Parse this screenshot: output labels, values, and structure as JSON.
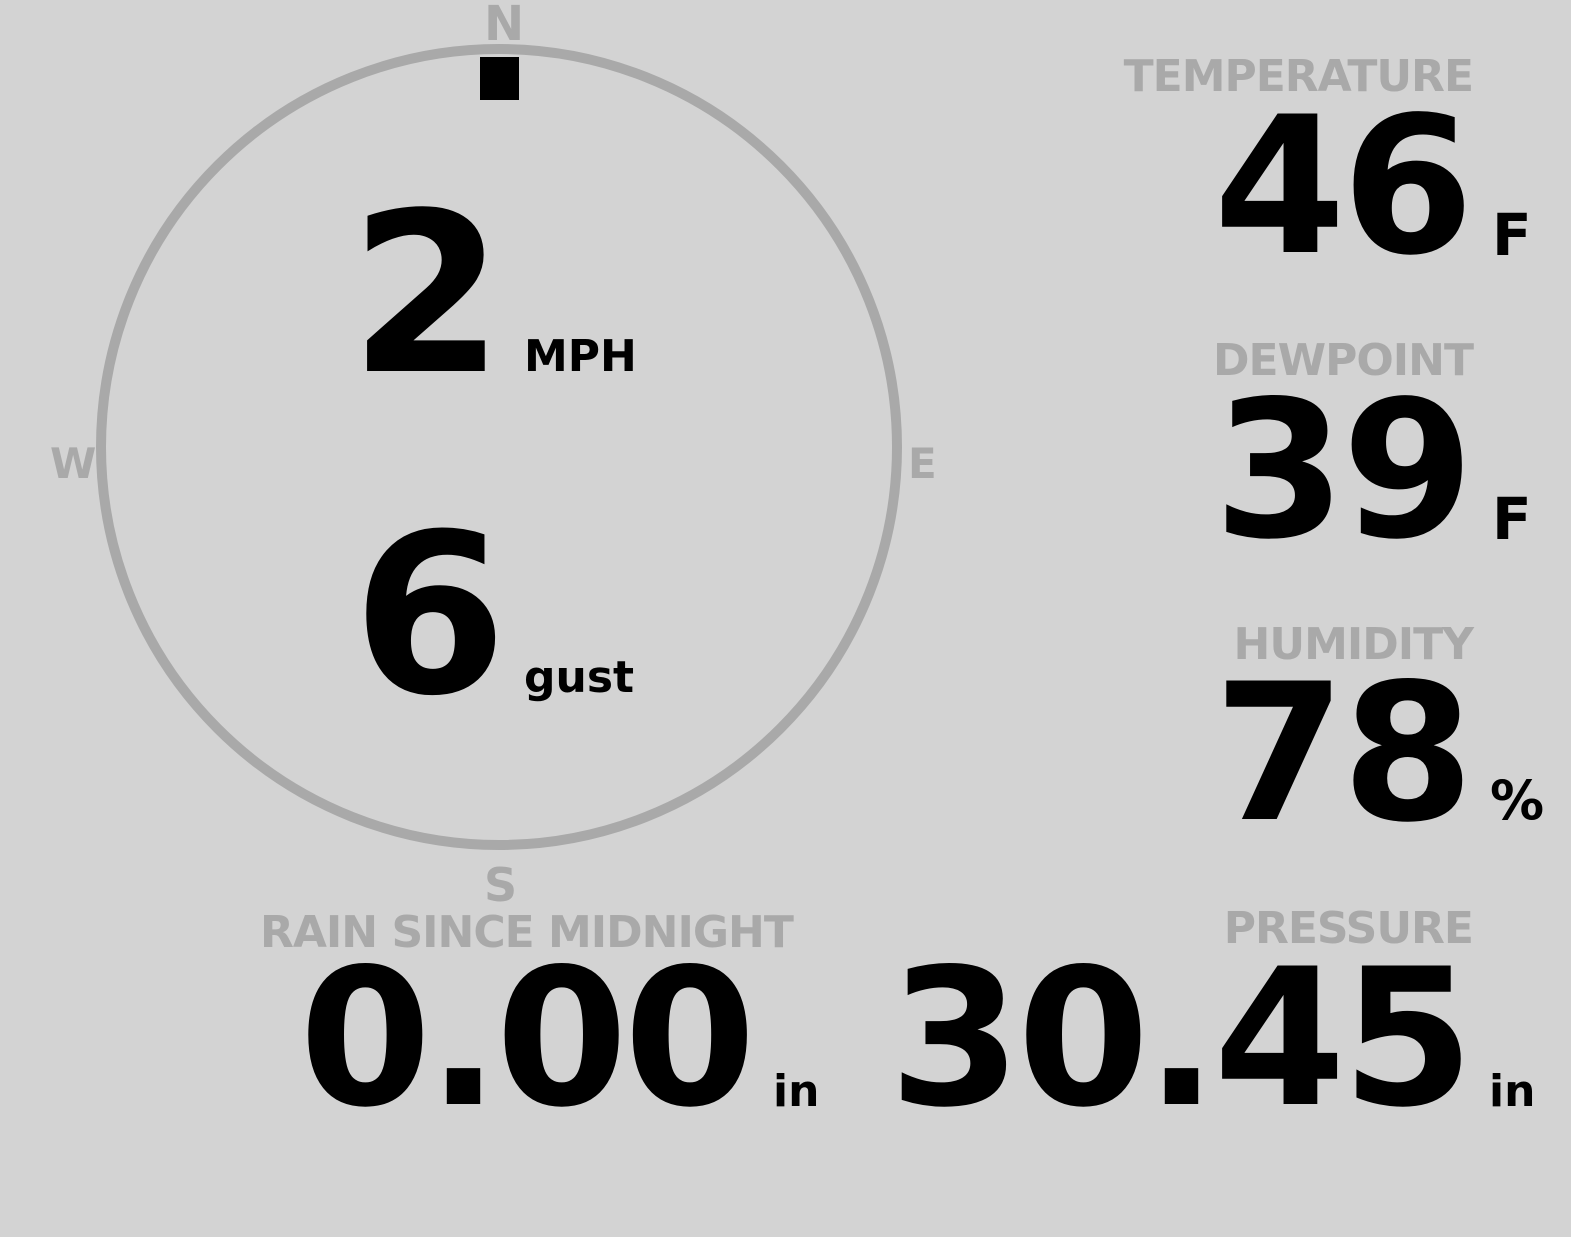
{
  "colors": {
    "background": "#d3d3d3",
    "label": "#a9a9a9",
    "value": "#000000"
  },
  "compass": {
    "north": "N",
    "east": "E",
    "south": "S",
    "west": "W",
    "direction_degrees": 0
  },
  "wind": {
    "speed": "2",
    "speed_unit": "MPH",
    "gust": "6",
    "gust_label": "gust"
  },
  "temperature": {
    "label": "TEMPERATURE",
    "value": "46",
    "unit": "F"
  },
  "dewpoint": {
    "label": "DEWPOINT",
    "value": "39",
    "unit": "F"
  },
  "humidity": {
    "label": "HUMIDITY",
    "value": "78",
    "unit": "%"
  },
  "pressure": {
    "label": "PRESSURE",
    "value": "30.45",
    "unit": "in"
  },
  "rain": {
    "label": "RAIN SINCE MIDNIGHT",
    "value": "0.00",
    "unit": "in"
  }
}
